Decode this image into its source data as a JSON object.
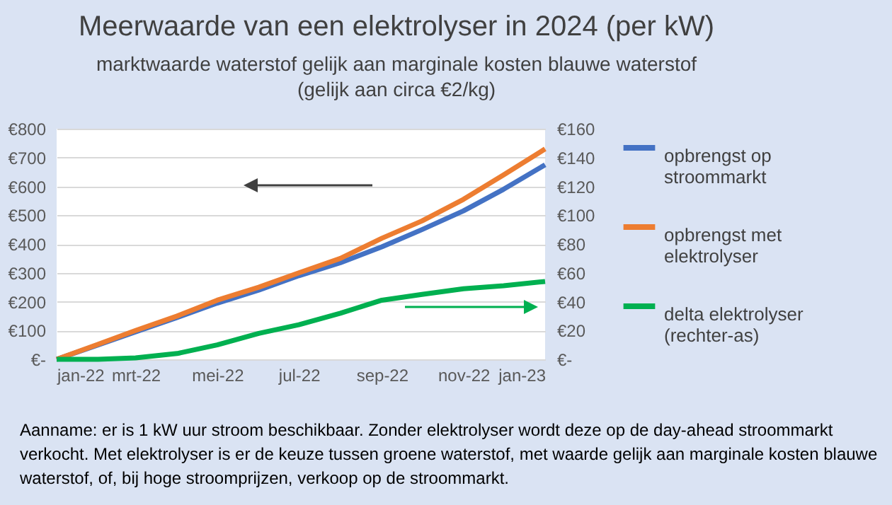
{
  "chart_data": {
    "type": "line",
    "title": "Meerwaarde van een elektrolyser in 2024 (per kW)",
    "subtitle": "marktwaarde waterstof gelijk aan marginale kosten blauwe waterstof (gelijk aan circa €2/kg)",
    "x": [
      "2022-01-01",
      "2022-02-01",
      "2022-03-01",
      "2022-04-01",
      "2022-05-01",
      "2022-06-01",
      "2022-07-01",
      "2022-08-01",
      "2022-09-01",
      "2022-10-01",
      "2022-11-01",
      "2022-12-01",
      "2023-01-01"
    ],
    "series": [
      {
        "name": "opbrengst op stroommarkt",
        "color": "#4472c4",
        "values": [
          0,
          50,
          95,
          145,
          195,
          240,
          290,
          335,
          390,
          450,
          515,
          590,
          675
        ]
      },
      {
        "name": "opbrengst met elektrolyser",
        "color": "#ed7d31",
        "values": [
          0,
          52,
          100,
          150,
          205,
          250,
          300,
          350,
          420,
          480,
          555,
          640,
          730
        ]
      },
      {
        "name": "delta elektrolyser (rechter-as)",
        "color": "#00b050",
        "axis": "y2",
        "values": [
          0,
          0,
          1,
          4,
          10,
          18,
          24,
          32,
          41,
          45,
          49,
          51,
          54
        ]
      }
    ],
    "xlim": [
      "2022-01-01",
      "2023-01-01"
    ],
    "xticks": [
      {
        "value": "2022-01-01",
        "label": "jan-22"
      },
      {
        "value": "2022-03-01",
        "label": "mrt-22"
      },
      {
        "value": "2022-05-01",
        "label": "mei-22"
      },
      {
        "value": "2022-07-01",
        "label": "jul-22"
      },
      {
        "value": "2022-09-01",
        "label": "sep-22"
      },
      {
        "value": "2022-11-01",
        "label": "nov-22"
      },
      {
        "value": "2023-01-01",
        "label": "jan-23"
      }
    ],
    "ylim": [
      0,
      800
    ],
    "yticks": [
      {
        "value": 0,
        "label": "€-"
      },
      {
        "value": 100,
        "label": "€100"
      },
      {
        "value": 200,
        "label": "€200"
      },
      {
        "value": 300,
        "label": "€300"
      },
      {
        "value": 400,
        "label": "€400"
      },
      {
        "value": 500,
        "label": "€500"
      },
      {
        "value": 600,
        "label": "€600"
      },
      {
        "value": 700,
        "label": "€700"
      },
      {
        "value": 800,
        "label": "€800"
      }
    ],
    "y2lim": [
      0,
      160
    ],
    "y2ticks": [
      {
        "value": 0,
        "label": "€-"
      },
      {
        "value": 20,
        "label": "€20"
      },
      {
        "value": 40,
        "label": "€40"
      },
      {
        "value": 60,
        "label": "€60"
      },
      {
        "value": 80,
        "label": "€80"
      },
      {
        "value": 100,
        "label": "€100"
      },
      {
        "value": 120,
        "label": "€120"
      },
      {
        "value": 140,
        "label": "€140"
      },
      {
        "value": 160,
        "label": "€160"
      }
    ],
    "grid": "y",
    "legend": "right",
    "marker": "none",
    "line_style": "solid",
    "annotations": [
      "Aanname: er is 1 kW uur stroom beschikbaar. Zonder elektrolyser wordt deze op de day-ahead stroommarkt verkocht. Met elektrolyser is er de keuze tussen groene waterstof, met waarde gelijk aan marginale kosten blauwe waterstof, of, bij hoge stroomprijzen, verkoop op de stroommarkt."
    ]
  }
}
